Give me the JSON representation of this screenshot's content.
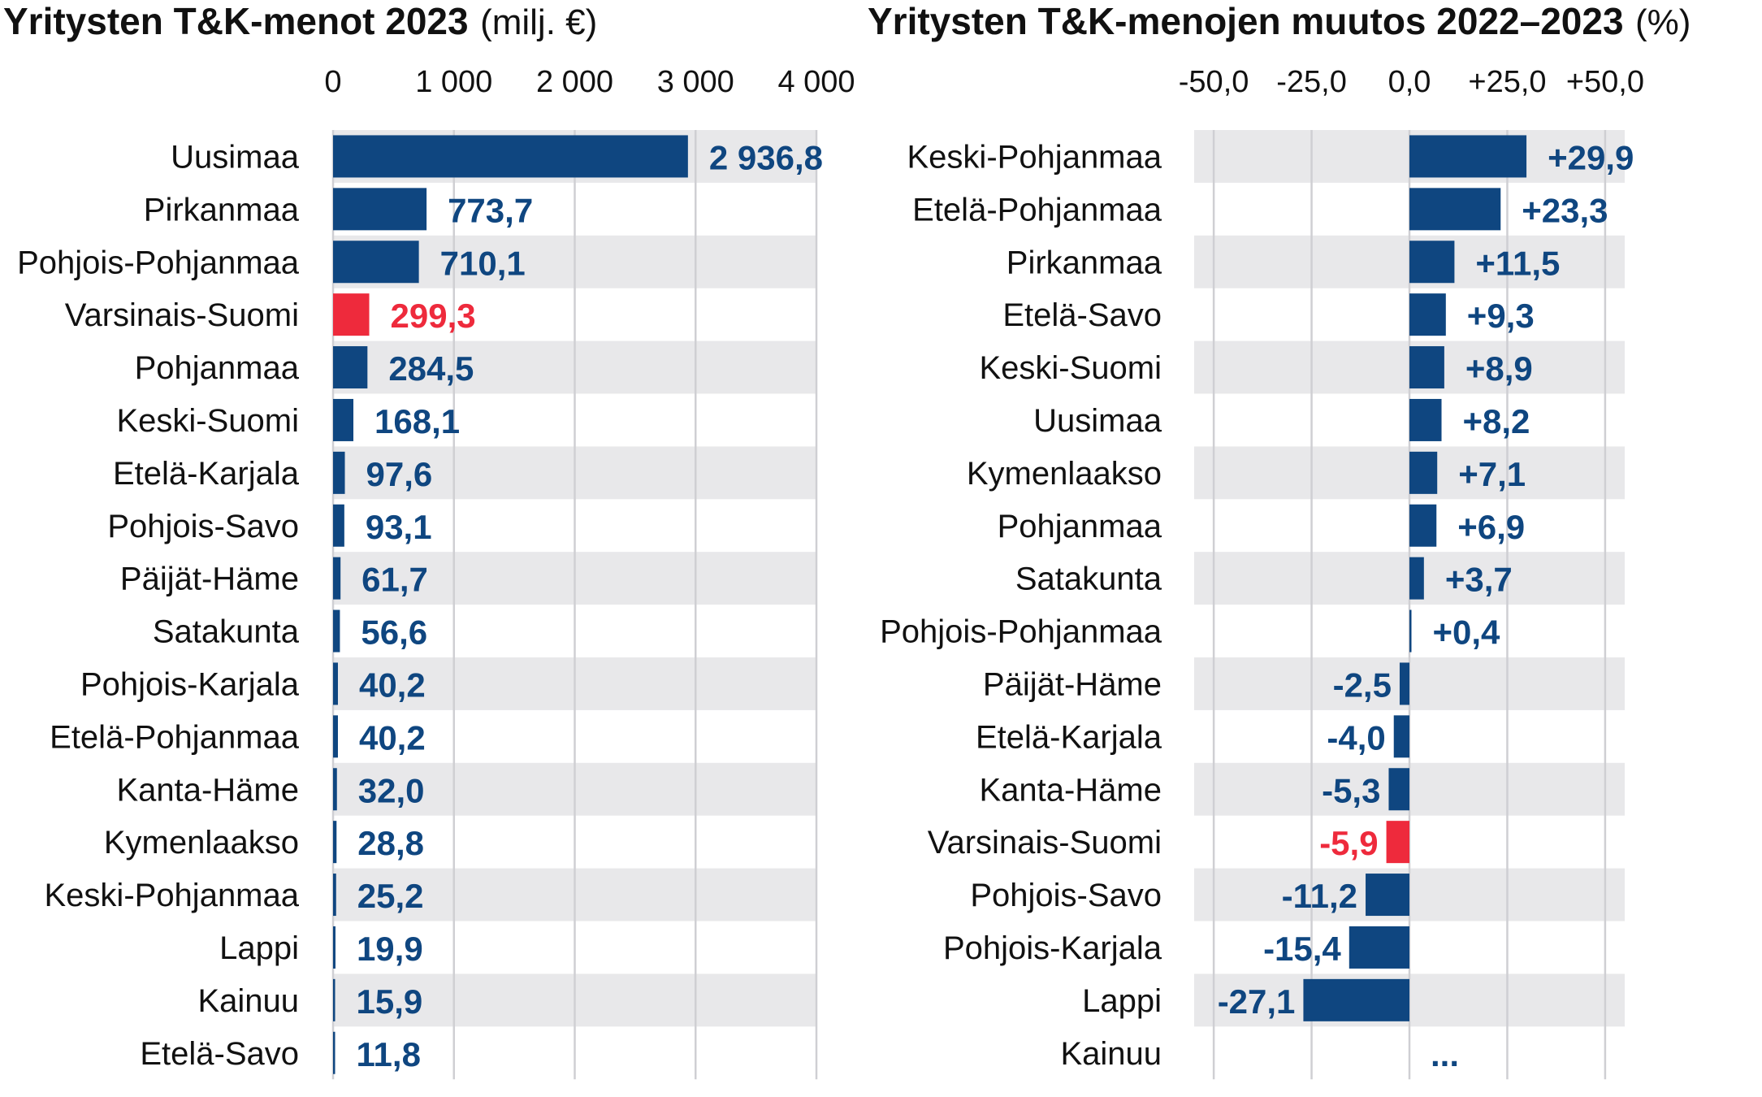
{
  "colors": {
    "bar": "#0f4680",
    "highlight": "#ee2a3c",
    "band": "#e8e8ea",
    "grid": "#cfcfd3"
  },
  "chart_data": [
    {
      "type": "bar",
      "orientation": "horizontal",
      "title": "Yritysten T&K-menot 2023",
      "title_unit": "(milj. €)",
      "xlim": [
        0,
        4000
      ],
      "ticks": [
        0,
        1000,
        2000,
        3000,
        4000
      ],
      "tick_labels": [
        "0",
        "1 000",
        "2 000",
        "3 000",
        "4 000"
      ],
      "grid": true,
      "highlight": "Varsinais-Suomi",
      "categories": [
        "Uusimaa",
        "Pirkanmaa",
        "Pohjois-Pohjanmaa",
        "Varsinais-Suomi",
        "Pohjanmaa",
        "Keski-Suomi",
        "Etelä-Karjala",
        "Pohjois-Savo",
        "Päijät-Häme",
        "Satakunta",
        "Pohjois-Karjala",
        "Etelä-Pohjanmaa",
        "Kanta-Häme",
        "Kymenlaakso",
        "Keski-Pohjanmaa",
        "Lappi",
        "Kainuu",
        "Etelä-Savo"
      ],
      "values": [
        2936.8,
        773.7,
        710.1,
        299.3,
        284.5,
        168.1,
        97.6,
        93.1,
        61.7,
        56.6,
        40.2,
        40.2,
        32.0,
        28.8,
        25.2,
        19.9,
        15.9,
        11.8
      ],
      "value_labels": [
        "2 936,8",
        "773,7",
        "710,1",
        "299,3",
        "284,5",
        "168,1",
        "97,6",
        "93,1",
        "61,7",
        "56,6",
        "40,2",
        "40,2",
        "32,0",
        "28,8",
        "25,2",
        "19,9",
        "15,9",
        "11,8"
      ]
    },
    {
      "type": "bar",
      "orientation": "horizontal",
      "title": "Yritysten T&K-menojen muutos 2022–2023",
      "title_unit": "(%)",
      "xlim": [
        -55,
        55
      ],
      "ticks": [
        -50,
        -25,
        0,
        25,
        50
      ],
      "tick_labels": [
        "-50,0",
        "-25,0",
        "0,0",
        "+25,0",
        "+50,0"
      ],
      "grid": true,
      "highlight": "Varsinais-Suomi",
      "categories": [
        "Keski-Pohjanmaa",
        "Etelä-Pohjanmaa",
        "Pirkanmaa",
        "Etelä-Savo",
        "Keski-Suomi",
        "Uusimaa",
        "Kymenlaakso",
        "Pohjanmaa",
        "Satakunta",
        "Pohjois-Pohjanmaa",
        "Päijät-Häme",
        "Etelä-Karjala",
        "Kanta-Häme",
        "Varsinais-Suomi",
        "Pohjois-Savo",
        "Pohjois-Karjala",
        "Lappi",
        "Kainuu"
      ],
      "values": [
        29.9,
        23.3,
        11.5,
        9.3,
        8.9,
        8.2,
        7.1,
        6.9,
        3.7,
        0.4,
        -2.5,
        -4.0,
        -5.3,
        -5.9,
        -11.2,
        -15.4,
        -27.1,
        null
      ],
      "value_labels": [
        "+29,9",
        "+23,3",
        "+11,5",
        "+9,3",
        "+8,9",
        "+8,2",
        "+7,1",
        "+6,9",
        "+3,7",
        "+0,4",
        "-2,5",
        "-4,0",
        "-5,3",
        "-5,9",
        "-11,2",
        "-15,4",
        "-27,1",
        "..."
      ]
    }
  ]
}
